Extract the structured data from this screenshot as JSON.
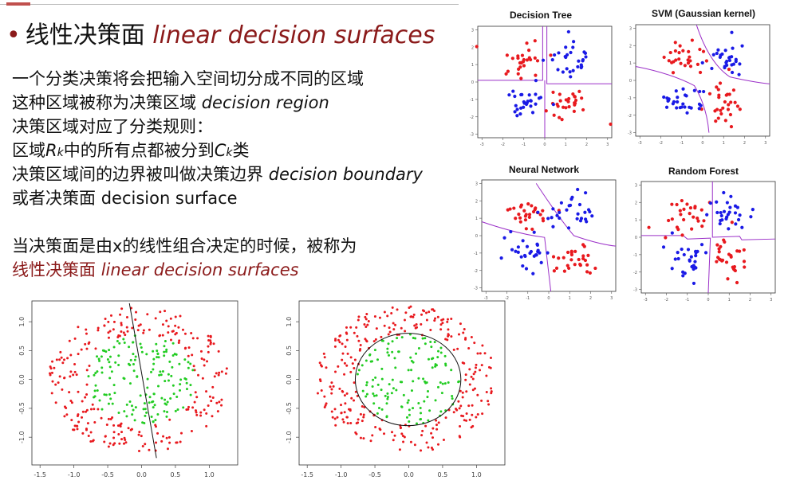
{
  "slide": {
    "bullet": "•",
    "title_cn": "线性决策面",
    "title_en": "linear decision surfaces",
    "lines": [
      {
        "cn": "一个分类决策将会把输入空间切分成不同的区域"
      },
      {
        "cn": "这种区域被称为决策区域",
        "en": "decision region"
      },
      {
        "cn": "决策区域对应了分类规则："
      },
      {
        "cn_a": "区域",
        "R": "R",
        "k1": "k",
        "cn_b": "中的所有点都被分到",
        "C": "C",
        "k2": "k",
        "cn_c": "类"
      },
      {
        "cn": "决策区域间的边界被叫做决策边界",
        "en": "decision boundary"
      },
      {
        "cn": "或者决策面",
        "en": "decision surface"
      },
      {
        "cn": "当决策面是由x的线性组合决定的时候，被称为"
      },
      {
        "cn": "线性决策面",
        "en": "linear decision surfaces"
      }
    ]
  },
  "classifiers": [
    {
      "title": "Decision Tree"
    },
    {
      "title": "SVM (Gaussian kernel)"
    },
    {
      "title": "Neural Network"
    },
    {
      "title": "Random Forest"
    }
  ],
  "colors": {
    "accent": "#8b1a1a",
    "class_red": "#e8191e",
    "class_blue": "#1a1ae6",
    "class_green": "#22cc22",
    "boundary": "#9b30c8"
  },
  "small_ticks": [
    "-3",
    "-2",
    "-1",
    "0",
    "1",
    "2",
    "3"
  ],
  "scatter_x_ticks": [
    "-1.5",
    "-1.0",
    "-0.5",
    "0.0",
    "0.5",
    "1.0"
  ],
  "scatter_y_ticks": [
    "1.0",
    "0.5",
    "0.0",
    "-0.5",
    "-1.0"
  ]
}
